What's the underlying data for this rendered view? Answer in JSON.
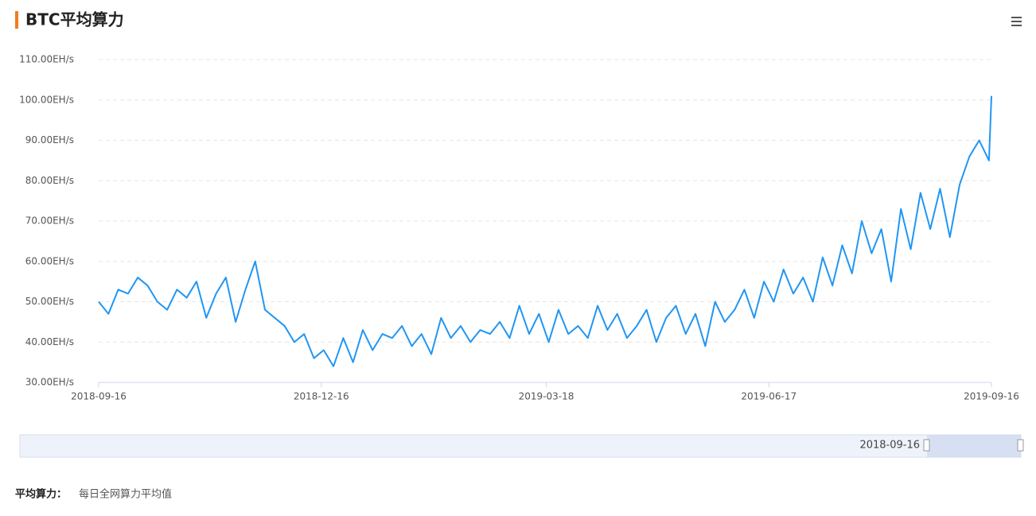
{
  "chart_data": {
    "type": "line",
    "title": "BTC平均算力",
    "x": [
      "2018-09-16",
      "2018-09-20",
      "2018-09-24",
      "2018-09-28",
      "2018-10-02",
      "2018-10-06",
      "2018-10-10",
      "2018-10-14",
      "2018-10-18",
      "2018-10-22",
      "2018-10-26",
      "2018-10-30",
      "2018-11-03",
      "2018-11-07",
      "2018-11-11",
      "2018-11-15",
      "2018-11-19",
      "2018-11-23",
      "2018-11-27",
      "2018-12-01",
      "2018-12-05",
      "2018-12-09",
      "2018-12-13",
      "2018-12-17",
      "2018-12-21",
      "2018-12-25",
      "2018-12-29",
      "2019-01-02",
      "2019-01-06",
      "2019-01-10",
      "2019-01-14",
      "2019-01-18",
      "2019-01-22",
      "2019-01-26",
      "2019-01-30",
      "2019-02-03",
      "2019-02-07",
      "2019-02-11",
      "2019-02-15",
      "2019-02-19",
      "2019-02-23",
      "2019-02-27",
      "2019-03-03",
      "2019-03-07",
      "2019-03-11",
      "2019-03-15",
      "2019-03-19",
      "2019-03-23",
      "2019-03-27",
      "2019-03-31",
      "2019-04-04",
      "2019-04-08",
      "2019-04-12",
      "2019-04-16",
      "2019-04-20",
      "2019-04-24",
      "2019-04-28",
      "2019-05-02",
      "2019-05-06",
      "2019-05-10",
      "2019-05-14",
      "2019-05-18",
      "2019-05-22",
      "2019-05-26",
      "2019-05-30",
      "2019-06-03",
      "2019-06-07",
      "2019-06-11",
      "2019-06-15",
      "2019-06-19",
      "2019-06-23",
      "2019-06-27",
      "2019-07-01",
      "2019-07-05",
      "2019-07-09",
      "2019-07-13",
      "2019-07-17",
      "2019-07-21",
      "2019-07-25",
      "2019-07-29",
      "2019-08-02",
      "2019-08-06",
      "2019-08-10",
      "2019-08-14",
      "2019-08-18",
      "2019-08-22",
      "2019-08-26",
      "2019-08-30",
      "2019-09-03",
      "2019-09-07",
      "2019-09-11",
      "2019-09-15",
      "2019-09-16"
    ],
    "series": [
      {
        "color": "#2196f3",
        "values": [
          50,
          47,
          53,
          52,
          56,
          54,
          50,
          48,
          53,
          51,
          55,
          46,
          52,
          56,
          45,
          53,
          60,
          48,
          46,
          44,
          40,
          42,
          36,
          38,
          34,
          41,
          35,
          43,
          38,
          42,
          41,
          44,
          39,
          42,
          37,
          46,
          41,
          44,
          40,
          43,
          42,
          45,
          41,
          49,
          42,
          47,
          40,
          48,
          42,
          44,
          41,
          49,
          43,
          47,
          41,
          44,
          48,
          40,
          46,
          49,
          42,
          47,
          39,
          50,
          45,
          48,
          53,
          46,
          55,
          50,
          58,
          52,
          56,
          50,
          61,
          54,
          64,
          57,
          70,
          62,
          68,
          55,
          73,
          63,
          77,
          68,
          78,
          66,
          79,
          86,
          90,
          85,
          101
        ]
      }
    ],
    "xlim": [
      "2018-09-16",
      "2019-09-16"
    ],
    "xticks": [
      "2018-09-16",
      "2018-12-16",
      "2019-03-18",
      "2019-06-17",
      "2019-09-16"
    ],
    "ylim": [
      30,
      110
    ],
    "yticks": [
      {
        "value": 30,
        "label": "30.00EH/s"
      },
      {
        "value": 40,
        "label": "40.00EH/s"
      },
      {
        "value": 50,
        "label": "50.00EH/s"
      },
      {
        "value": 60,
        "label": "60.00EH/s"
      },
      {
        "value": 70,
        "label": "70.00EH/s"
      },
      {
        "value": 80,
        "label": "80.00EH/s"
      },
      {
        "value": 90,
        "label": "90.00EH/s"
      },
      {
        "value": 100,
        "label": "100.00EH/s"
      },
      {
        "value": 110,
        "label": "110.00EH/s"
      }
    ],
    "grid": true
  },
  "footer": {
    "term": "平均算力：",
    "definition": "每日全网算力平均值"
  }
}
